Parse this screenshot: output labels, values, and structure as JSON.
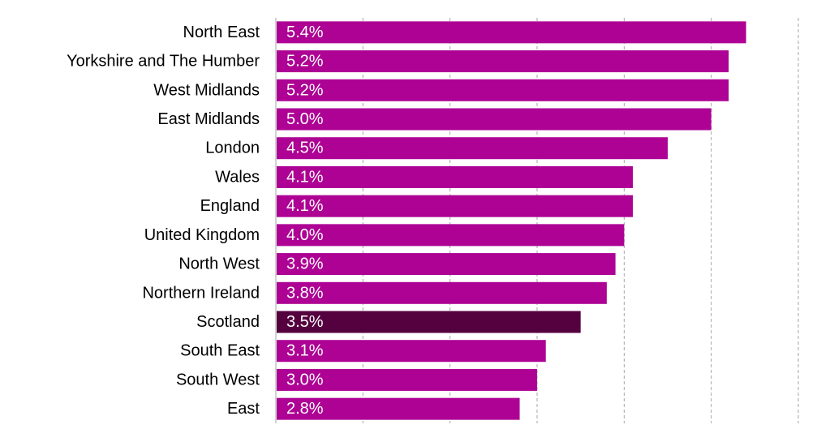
{
  "chart_data": {
    "type": "bar",
    "orientation": "horizontal",
    "categories": [
      "North East",
      "Yorkshire and The Humber",
      "West Midlands",
      "East Midlands",
      "London",
      "Wales",
      "England",
      "United Kingdom",
      "North West",
      "Northern Ireland",
      "Scotland",
      "South East",
      "South West",
      "East"
    ],
    "values": [
      5.4,
      5.2,
      5.2,
      5.0,
      4.5,
      4.1,
      4.1,
      4.0,
      3.9,
      3.8,
      3.5,
      3.1,
      3.0,
      2.8
    ],
    "data_labels": [
      "5.4%",
      "5.2%",
      "5.2%",
      "5.0%",
      "4.5%",
      "4.1%",
      "4.1%",
      "4.0%",
      "3.9%",
      "3.8%",
      "3.5%",
      "3.1%",
      "3.0%",
      "2.8%"
    ],
    "xlim": [
      0,
      6
    ],
    "grid": "vertical dashed",
    "bar_color": "#AD0294",
    "highlight_category": "Scotland",
    "highlight_color": "#55003F"
  }
}
